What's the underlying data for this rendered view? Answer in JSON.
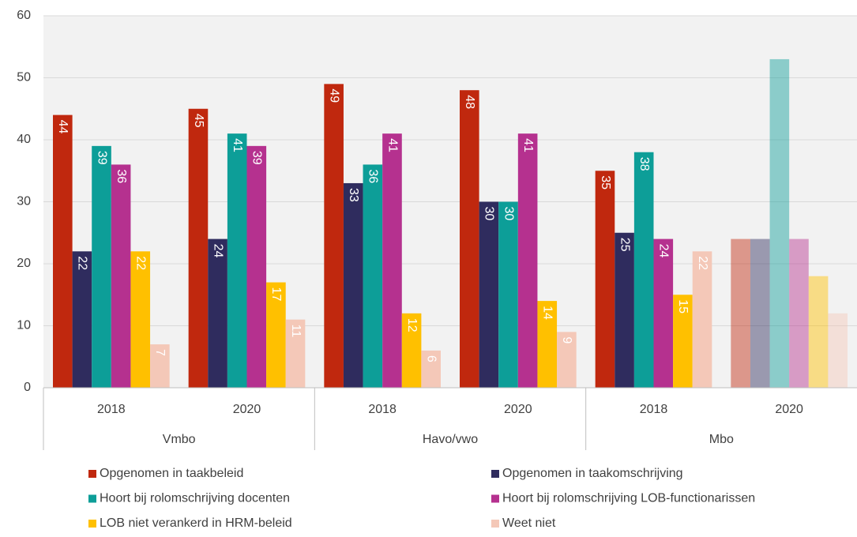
{
  "chart_data": {
    "type": "bar",
    "categories": [
      "2018",
      "2020",
      "2018",
      "2020",
      "2018",
      "2020"
    ],
    "groups": [
      {
        "name": "Vmbo",
        "span": 2
      },
      {
        "name": "Havo/vwo",
        "span": 2
      },
      {
        "name": "Mbo",
        "span": 2
      }
    ],
    "faded": [
      false,
      false,
      false,
      false,
      false,
      true
    ],
    "series": [
      {
        "name": "Opgenomen in taakbeleid",
        "color": "#c0280e",
        "values": [
          44,
          45,
          49,
          48,
          35,
          24
        ]
      },
      {
        "name": "Opgenomen in taakomschrijving",
        "color": "#2f2c5e",
        "values": [
          22,
          24,
          33,
          30,
          25,
          24
        ]
      },
      {
        "name": "Hoort bij rolomschrijving docenten",
        "color": "#0d9e98",
        "values": [
          39,
          41,
          36,
          30,
          38,
          53
        ]
      },
      {
        "name": "Hoort bij rolomschrijving LOB-functionarissen",
        "color": "#b5318f",
        "values": [
          36,
          39,
          41,
          41,
          24,
          24
        ]
      },
      {
        "name": "LOB niet verankerd in HRM-beleid",
        "color": "#ffc000",
        "values": [
          22,
          17,
          12,
          14,
          15,
          18
        ]
      },
      {
        "name": "Weet niet",
        "color": "#f4c8b8",
        "values": [
          7,
          11,
          6,
          9,
          22,
          12
        ]
      }
    ],
    "ylim": [
      0,
      60
    ],
    "yticks": [
      0,
      10,
      20,
      30,
      40,
      50,
      60
    ],
    "grid": true,
    "legend": "bottom"
  }
}
